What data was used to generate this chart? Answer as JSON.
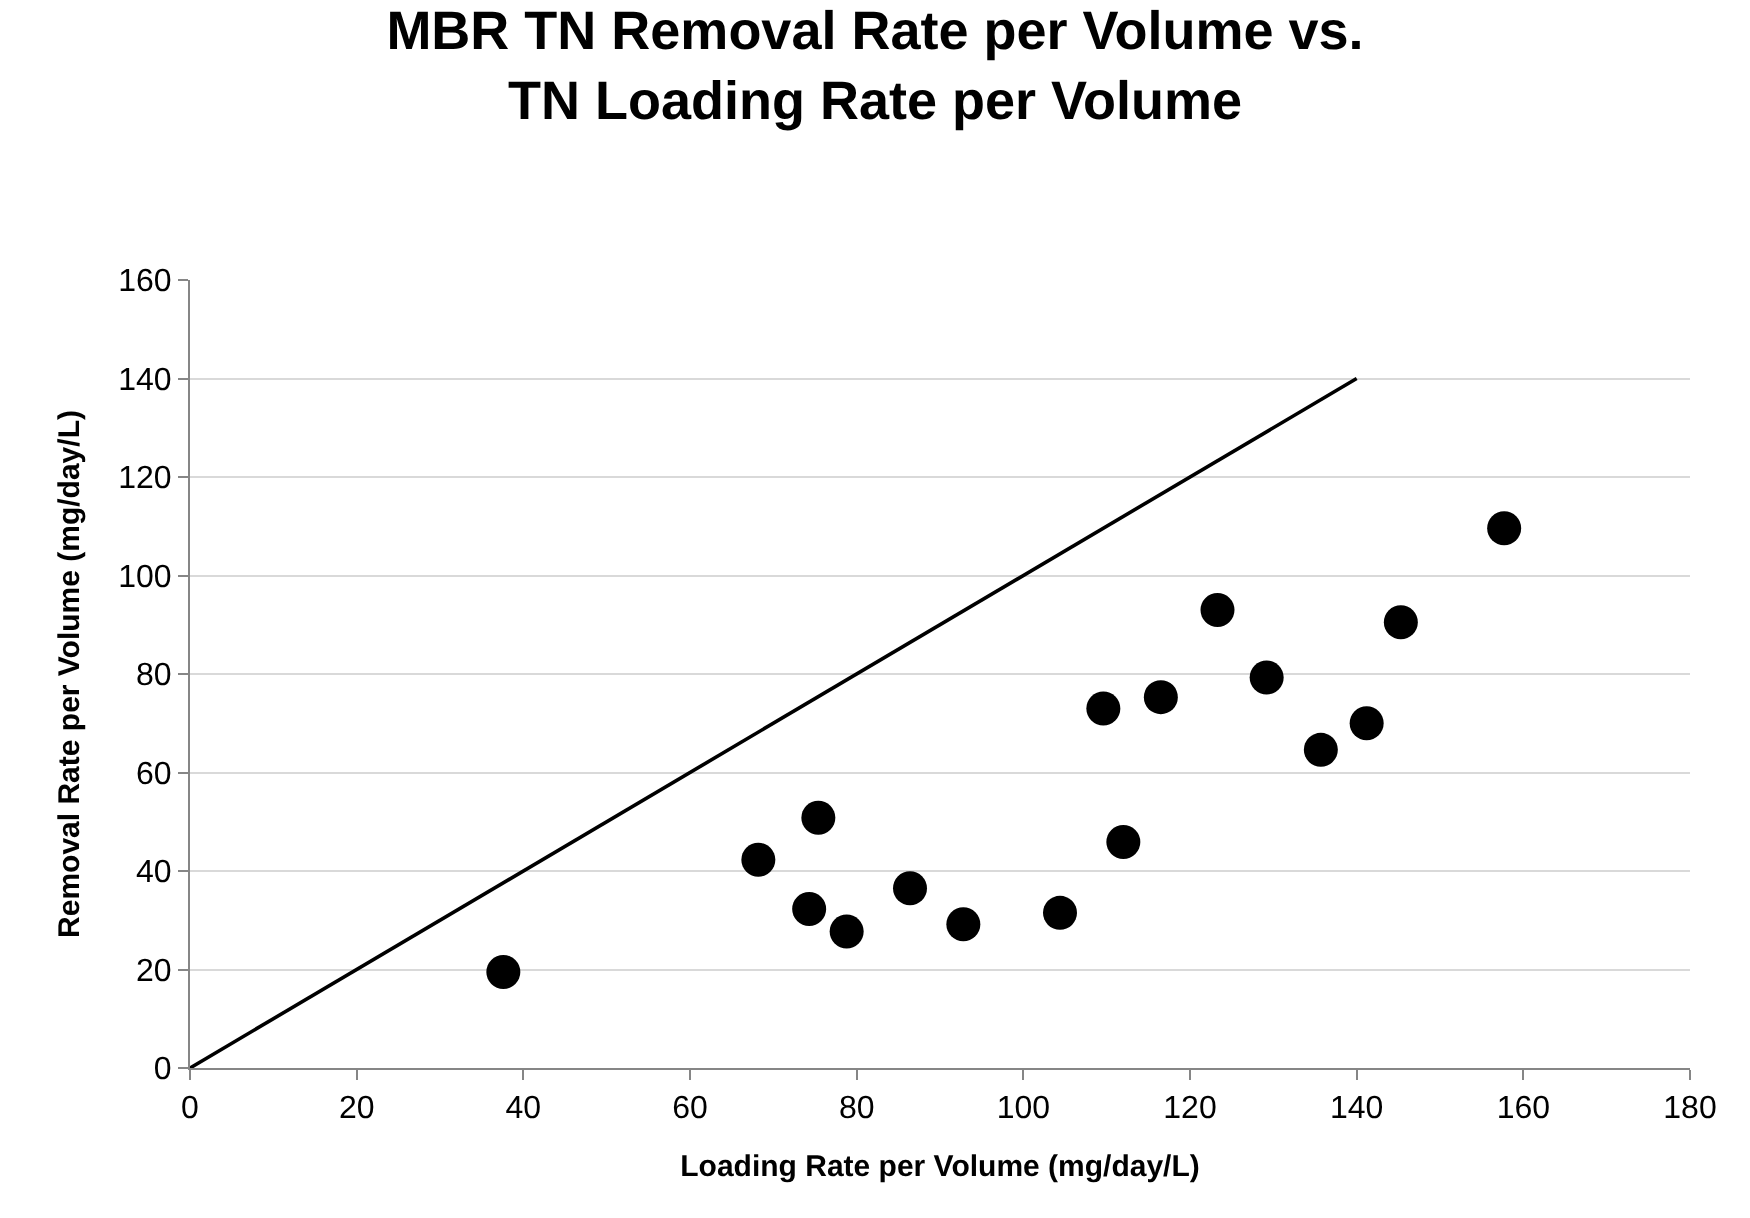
{
  "chart_data": {
    "type": "scatter",
    "title": "MBR TN Removal Rate per Volume vs.\nTN Loading Rate per Volume",
    "xlabel": "Loading Rate per Volume (mg/day/L)",
    "ylabel": "Removal Rate per Volume (mg/day/L)",
    "series": [
      {
        "color": "#000000",
        "marker": "circle",
        "x": [
          37.6,
          68.2,
          75.4,
          74.3,
          78.8,
          86.4,
          92.8,
          104.4,
          109.6,
          112.0,
          116.5,
          123.3,
          129.2,
          135.7,
          141.2,
          145.3,
          157.7
        ],
        "values": [
          19.5,
          42.3,
          50.8,
          32.3,
          27.7,
          36.5,
          29.2,
          31.5,
          73.0,
          45.9,
          75.3,
          93.0,
          79.3,
          64.6,
          70.0,
          90.5,
          109.6
        ]
      },
      {
        "type": "line",
        "color": "#000000",
        "marker": "none",
        "line_style": "solid",
        "x": [
          0,
          140
        ],
        "values": [
          0,
          140
        ]
      }
    ],
    "xlim": [
      0,
      180
    ],
    "xticks": [
      0,
      20,
      40,
      60,
      80,
      100,
      120,
      140,
      160,
      180
    ],
    "ylim": [
      0,
      160
    ],
    "yticks": [
      0,
      20,
      40,
      60,
      80,
      100,
      120,
      140,
      160
    ],
    "grid": "y"
  }
}
